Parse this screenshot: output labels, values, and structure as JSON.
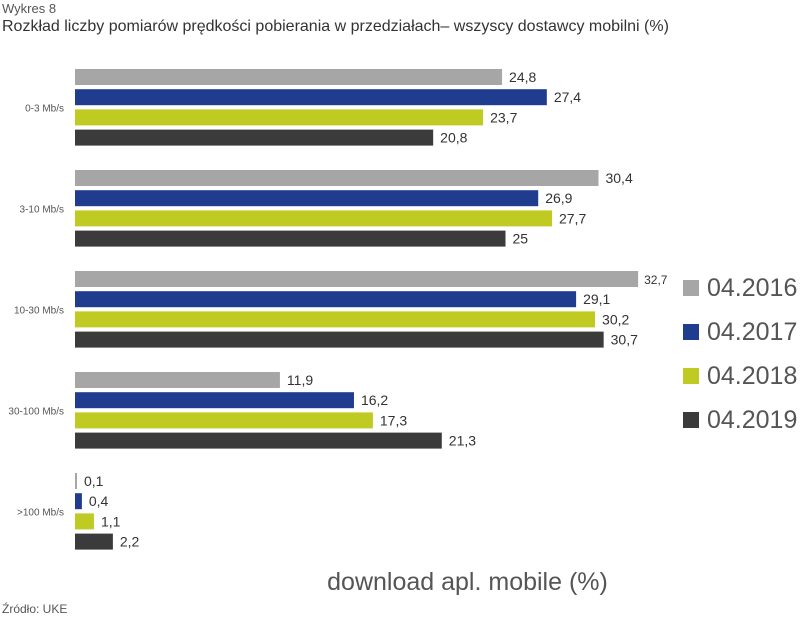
{
  "header": {
    "kicker": "Wykres 8",
    "title": "Rozkład liczby pomiarów prędkości pobierania w przedziałach– wszyscy dostawcy mobilni (%)"
  },
  "footer": {
    "source": "Źródło: UKE"
  },
  "chart_data": {
    "type": "bar",
    "orientation": "horizontal",
    "title": "Rozkład liczby pomiarów prędkości pobierania w przedziałach– wszyscy dostawcy mobilni (%)",
    "xlabel": "download apl. mobile (%)",
    "ylabel": "",
    "xlim": [
      0,
      35
    ],
    "grid": false,
    "legend_position": "right",
    "categories": [
      "0-3 Mb/s",
      "3-10 Mb/s",
      "10-30 Mb/s",
      "30-100 Mb/s",
      ">100 Mb/s"
    ],
    "series": [
      {
        "name": "04.2016",
        "color": "#a6a6a6",
        "values": [
          24.8,
          30.4,
          32.7,
          11.9,
          0.1
        ],
        "labels": [
          "24,8",
          "30,4",
          "32,7",
          "11,9",
          "0,1"
        ]
      },
      {
        "name": "04.2017",
        "color": "#1f3c8f",
        "values": [
          27.4,
          26.9,
          29.1,
          16.2,
          0.4
        ],
        "labels": [
          "27,4",
          "26,9",
          "29,1",
          "16,2",
          "0,4"
        ]
      },
      {
        "name": "04.2018",
        "color": "#bfcb22",
        "values": [
          23.7,
          27.7,
          30.2,
          17.3,
          1.1
        ],
        "labels": [
          "23,7",
          "27,7",
          "30,2",
          "17,3",
          "1,1"
        ]
      },
      {
        "name": "04.2019",
        "color": "#3b3b3b",
        "values": [
          20.8,
          25,
          30.7,
          21.3,
          2.2
        ],
        "labels": [
          "20,8",
          "25",
          "30,7",
          "21,3",
          "2,2"
        ]
      }
    ]
  }
}
